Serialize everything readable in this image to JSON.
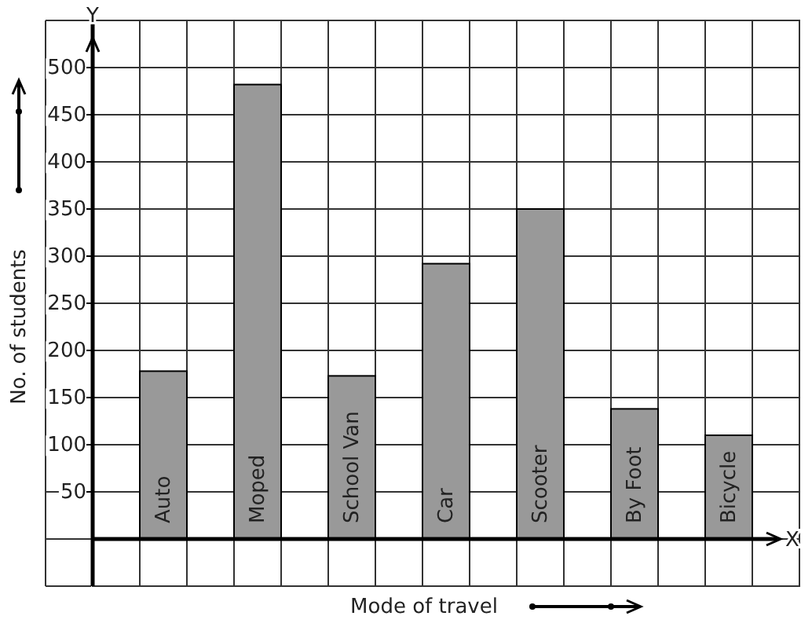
{
  "chart_data": {
    "type": "bar",
    "xlabel": "Mode of travel",
    "ylabel": "No. of students",
    "categories": [
      "Auto",
      "Moped",
      "School Van",
      "Car",
      "Scooter",
      "By Foot",
      "Bicycle"
    ],
    "values": [
      178,
      482,
      173,
      292,
      350,
      138,
      110
    ],
    "color": "#999999",
    "ylim": [
      -50,
      550
    ],
    "yticks": [
      50,
      100,
      150,
      200,
      250,
      300,
      350,
      400,
      450,
      500
    ],
    "grid": true,
    "annotations": [
      "Y",
      "X"
    ]
  }
}
